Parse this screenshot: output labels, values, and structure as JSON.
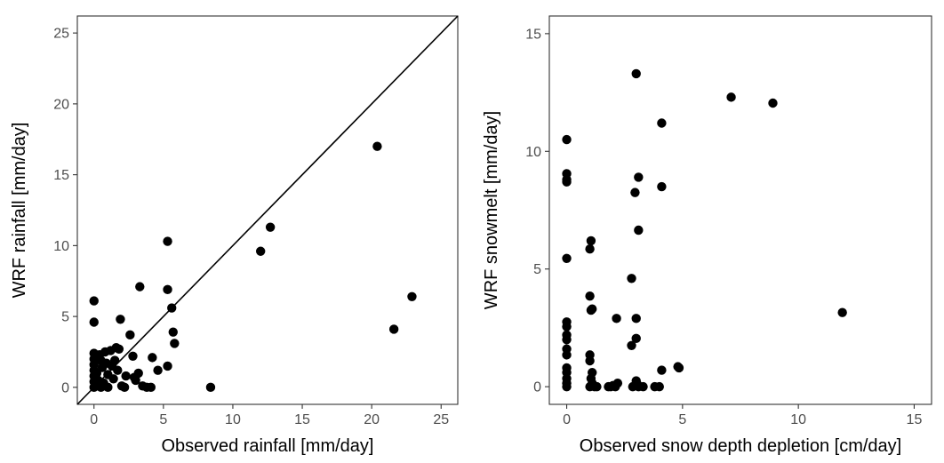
{
  "chart_data": [
    {
      "type": "scatter",
      "xlabel": "Observed rainfall [mm/day]",
      "ylabel": "WRF rainfall [mm/day]",
      "xlim": [
        -1.2,
        26.2
      ],
      "ylim": [
        -1.2,
        26.2
      ],
      "xticks": [
        0,
        5,
        10,
        15,
        20,
        25
      ],
      "yticks": [
        0,
        5,
        10,
        15,
        20,
        25
      ],
      "reference_line": "1:1",
      "grid": false,
      "point_color": "#000000",
      "points": [
        [
          0.0,
          6.1
        ],
        [
          0.0,
          4.6
        ],
        [
          0.0,
          2.4
        ],
        [
          0.0,
          2.0
        ],
        [
          0.0,
          1.6
        ],
        [
          0.0,
          1.2
        ],
        [
          0.0,
          0.8
        ],
        [
          0.0,
          0.4
        ],
        [
          0.0,
          0.0
        ],
        [
          0.1,
          0.2
        ],
        [
          0.2,
          1.0
        ],
        [
          0.3,
          0.5
        ],
        [
          0.4,
          2.3
        ],
        [
          0.5,
          1.9
        ],
        [
          0.5,
          0.0
        ],
        [
          0.6,
          1.4
        ],
        [
          0.7,
          0.3
        ],
        [
          0.8,
          2.5
        ],
        [
          0.9,
          1.7
        ],
        [
          1.0,
          0.9
        ],
        [
          1.0,
          0.0
        ],
        [
          1.2,
          2.6
        ],
        [
          1.3,
          1.5
        ],
        [
          1.4,
          0.6
        ],
        [
          1.5,
          1.9
        ],
        [
          1.6,
          2.8
        ],
        [
          1.7,
          1.2
        ],
        [
          1.8,
          2.7
        ],
        [
          1.9,
          4.8
        ],
        [
          2.0,
          0.1
        ],
        [
          2.2,
          0.0
        ],
        [
          2.3,
          0.8
        ],
        [
          2.6,
          3.7
        ],
        [
          2.8,
          2.2
        ],
        [
          2.9,
          0.7
        ],
        [
          3.0,
          0.5
        ],
        [
          3.2,
          1.0
        ],
        [
          3.3,
          7.1
        ],
        [
          3.5,
          0.1
        ],
        [
          3.8,
          0.0
        ],
        [
          4.1,
          0.0
        ],
        [
          4.2,
          2.1
        ],
        [
          4.6,
          1.2
        ],
        [
          5.3,
          10.3
        ],
        [
          5.3,
          6.9
        ],
        [
          5.3,
          1.5
        ],
        [
          5.6,
          5.6
        ],
        [
          5.7,
          3.9
        ],
        [
          5.8,
          3.1
        ],
        [
          8.4,
          0.0
        ],
        [
          12.0,
          9.6
        ],
        [
          12.7,
          11.3
        ],
        [
          20.4,
          17.0
        ],
        [
          21.6,
          4.1
        ],
        [
          22.9,
          6.4
        ]
      ]
    },
    {
      "type": "scatter",
      "xlabel": "Observed snow depth depletion [cm/day]",
      "ylabel": "WRF snowmelt [mm/day]",
      "xlim": [
        -0.75,
        15.75
      ],
      "ylim": [
        -0.75,
        15.75
      ],
      "xticks": [
        0,
        5,
        10,
        15
      ],
      "yticks": [
        0,
        5,
        10,
        15
      ],
      "grid": false,
      "point_color": "#000000",
      "points": [
        [
          0.0,
          10.5
        ],
        [
          0.0,
          9.05
        ],
        [
          0.0,
          8.8
        ],
        [
          0.0,
          8.7
        ],
        [
          0.0,
          5.45
        ],
        [
          0.0,
          2.75
        ],
        [
          0.0,
          2.55
        ],
        [
          0.0,
          2.2
        ],
        [
          0.0,
          2.0
        ],
        [
          0.0,
          1.6
        ],
        [
          0.0,
          1.35
        ],
        [
          0.0,
          0.8
        ],
        [
          0.0,
          0.6
        ],
        [
          0.0,
          0.35
        ],
        [
          0.0,
          0.15
        ],
        [
          0.0,
          0.0
        ],
        [
          1.0,
          5.85
        ],
        [
          1.05,
          6.2
        ],
        [
          1.0,
          3.85
        ],
        [
          1.05,
          3.25
        ],
        [
          1.1,
          3.3
        ],
        [
          1.0,
          1.35
        ],
        [
          1.0,
          1.1
        ],
        [
          1.1,
          0.6
        ],
        [
          1.05,
          0.35
        ],
        [
          1.1,
          0.15
        ],
        [
          1.0,
          0.0
        ],
        [
          1.2,
          0.0
        ],
        [
          1.3,
          0.0
        ],
        [
          1.8,
          0.0
        ],
        [
          1.9,
          0.0
        ],
        [
          2.0,
          0.05
        ],
        [
          2.1,
          0.0
        ],
        [
          2.15,
          2.9
        ],
        [
          2.2,
          0.15
        ],
        [
          2.8,
          4.6
        ],
        [
          2.8,
          1.75
        ],
        [
          2.85,
          0.0
        ],
        [
          2.95,
          8.25
        ],
        [
          3.0,
          13.3
        ],
        [
          3.0,
          2.9
        ],
        [
          3.0,
          2.05
        ],
        [
          3.0,
          0.25
        ],
        [
          3.05,
          0.1
        ],
        [
          3.1,
          0.0
        ],
        [
          3.1,
          8.9
        ],
        [
          3.1,
          6.65
        ],
        [
          3.3,
          0.0
        ],
        [
          3.8,
          0.0
        ],
        [
          4.0,
          0.0
        ],
        [
          4.1,
          11.2
        ],
        [
          4.1,
          8.5
        ],
        [
          4.1,
          0.7
        ],
        [
          4.8,
          0.85
        ],
        [
          4.85,
          0.8
        ],
        [
          7.1,
          12.3
        ],
        [
          8.9,
          12.05
        ],
        [
          11.9,
          3.15
        ]
      ]
    }
  ]
}
